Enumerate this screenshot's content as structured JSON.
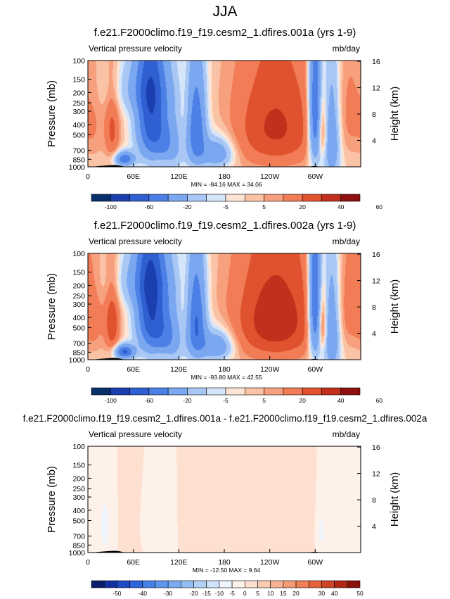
{
  "page_title": "JJA",
  "colors": {
    "panel_scale_12": [
      "#08306b",
      "#1c3fb0",
      "#2f5fd0",
      "#4d80e6",
      "#7aa7ef",
      "#a9c7f5",
      "#d6e6fa",
      "#fde4d4",
      "#fbc3a6",
      "#f7a07e",
      "#f17c55",
      "#e0522d",
      "#c0301c",
      "#901010"
    ],
    "diff_scale_20": [
      "#0a1d6b",
      "#1230a0",
      "#1d4bc6",
      "#2d66dc",
      "#4680e8",
      "#5f97ee",
      "#7aacf2",
      "#94bff5",
      "#b2d2f8",
      "#cfe3fb",
      "#eef5fd",
      "#fdf1ea",
      "#fde0cf",
      "#fbcbb2",
      "#f8b393",
      "#f49a75",
      "#ef7f58",
      "#e4613c",
      "#d04326",
      "#b02814",
      "#8a1208"
    ],
    "terrain": "#000000"
  },
  "chart_data": [
    {
      "type": "heatmap",
      "title": "f.e21.F2000climo.f19_f19.cesm2_1.dfires.001a (yrs 1-9)",
      "left_label": "Vertical pressure velocity",
      "right_label": "mb/day",
      "ylabel": "Pressure (mb)",
      "ylabel_right": "Height (km)",
      "x_ticks": [
        "0",
        "60E",
        "120E",
        "180",
        "120W",
        "60W"
      ],
      "y_ticks": [
        "100",
        "150",
        "200",
        "250",
        "300",
        "400",
        "500",
        "700",
        "850",
        "1000"
      ],
      "y_ticks_right": [
        "16",
        "12",
        "8",
        "4"
      ],
      "xlim_deg": [
        0,
        360
      ],
      "ylim_mb": [
        1000,
        100
      ],
      "minmax_text": "MIN = -84.16  MAX = 34.06",
      "colorbar_levels": [
        -100,
        -80,
        -60,
        -40,
        -20,
        -10,
        -5,
        0,
        5,
        10,
        20,
        30,
        40,
        50,
        60
      ],
      "colorbar_labels": [
        "-100",
        "-60",
        "-20",
        "-5",
        "5",
        "20",
        "40",
        "60"
      ],
      "features": [
        {
          "lon": 8,
          "p": 400,
          "amp": 8,
          "slon": 10,
          "sp": 300
        },
        {
          "lon": 32,
          "p": 450,
          "amp": 22,
          "slon": 7,
          "sp": 280
        },
        {
          "lon": 48,
          "p": 850,
          "amp": -55,
          "slon": 9,
          "sp": 90
        },
        {
          "lon": 82,
          "p": 300,
          "amp": -70,
          "slon": 13,
          "sp": 330
        },
        {
          "lon": 105,
          "p": 600,
          "amp": -35,
          "slon": 14,
          "sp": 300
        },
        {
          "lon": 70,
          "p": 180,
          "amp": -18,
          "slon": 30,
          "sp": 80
        },
        {
          "lon": 98,
          "p": 900,
          "amp": 10,
          "slon": 9,
          "sp": 80
        },
        {
          "lon": 143,
          "p": 450,
          "amp": -58,
          "slon": 9,
          "sp": 320
        },
        {
          "lon": 170,
          "p": 750,
          "amp": -38,
          "slon": 15,
          "sp": 170
        },
        {
          "lon": 128,
          "p": 350,
          "amp": 7,
          "slon": 7,
          "sp": 250
        },
        {
          "lon": 248,
          "p": 420,
          "amp": 32,
          "slon": 42,
          "sp": 380
        },
        {
          "lon": 300,
          "p": 300,
          "amp": -65,
          "slon": 6,
          "sp": 400
        },
        {
          "lon": 322,
          "p": 550,
          "amp": -42,
          "slon": 8,
          "sp": 420
        },
        {
          "lon": 310,
          "p": 480,
          "amp": 22,
          "slon": 4,
          "sp": 200
        },
        {
          "lon": 345,
          "p": 300,
          "amp": 10,
          "slon": 14,
          "sp": 280
        }
      ]
    },
    {
      "type": "heatmap",
      "title": "f.e21.F2000climo.f19_f19.cesm2_1.dfires.002a (yrs 1-9)",
      "left_label": "Vertical pressure velocity",
      "right_label": "mb/day",
      "ylabel": "Pressure (mb)",
      "ylabel_right": "Height (km)",
      "x_ticks": [
        "0",
        "60E",
        "120E",
        "180",
        "120W",
        "60W"
      ],
      "y_ticks": [
        "100",
        "150",
        "200",
        "250",
        "300",
        "400",
        "500",
        "700",
        "850",
        "1000"
      ],
      "y_ticks_right": [
        "16",
        "12",
        "8",
        "4"
      ],
      "xlim_deg": [
        0,
        360
      ],
      "ylim_mb": [
        1000,
        100
      ],
      "minmax_text": "MIN = -93.80  MAX = 42.55",
      "colorbar_levels": [
        -100,
        -80,
        -60,
        -40,
        -20,
        -10,
        -5,
        0,
        5,
        10,
        20,
        30,
        40,
        50,
        60
      ],
      "colorbar_labels": [
        "-100",
        "-60",
        "-20",
        "-5",
        "5",
        "20",
        "40",
        "60"
      ],
      "features": [
        {
          "lon": 8,
          "p": 400,
          "amp": 12,
          "slon": 10,
          "sp": 300
        },
        {
          "lon": 32,
          "p": 450,
          "amp": 28,
          "slon": 7,
          "sp": 280
        },
        {
          "lon": 48,
          "p": 850,
          "amp": -65,
          "slon": 9,
          "sp": 90
        },
        {
          "lon": 82,
          "p": 300,
          "amp": -75,
          "slon": 13,
          "sp": 330
        },
        {
          "lon": 105,
          "p": 600,
          "amp": -40,
          "slon": 14,
          "sp": 300
        },
        {
          "lon": 70,
          "p": 180,
          "amp": -20,
          "slon": 30,
          "sp": 80
        },
        {
          "lon": 98,
          "p": 900,
          "amp": 12,
          "slon": 9,
          "sp": 80
        },
        {
          "lon": 143,
          "p": 450,
          "amp": -62,
          "slon": 9,
          "sp": 320
        },
        {
          "lon": 170,
          "p": 750,
          "amp": -40,
          "slon": 15,
          "sp": 170
        },
        {
          "lon": 128,
          "p": 350,
          "amp": 9,
          "slon": 7,
          "sp": 250
        },
        {
          "lon": 248,
          "p": 420,
          "amp": 38,
          "slon": 42,
          "sp": 380
        },
        {
          "lon": 300,
          "p": 300,
          "amp": -70,
          "slon": 6,
          "sp": 400
        },
        {
          "lon": 322,
          "p": 550,
          "amp": -45,
          "slon": 8,
          "sp": 420
        },
        {
          "lon": 310,
          "p": 480,
          "amp": 26,
          "slon": 4,
          "sp": 200
        },
        {
          "lon": 345,
          "p": 300,
          "amp": 12,
          "slon": 14,
          "sp": 280
        }
      ]
    },
    {
      "type": "heatmap",
      "title": "f.e21.F2000climo.f19_f19.cesm2_1.dfires.001a - f.e21.F2000climo.f19_f19.cesm2_1.dfires.002a",
      "left_label": "Vertical pressure velocity",
      "right_label": "mb/day",
      "ylabel": "Pressure (mb)",
      "ylabel_right": "Height (km)",
      "x_ticks": [
        "0",
        "60E",
        "120E",
        "180",
        "120W",
        "60W"
      ],
      "y_ticks": [
        "100",
        "150",
        "200",
        "250",
        "300",
        "400",
        "500",
        "700",
        "850",
        "1000"
      ],
      "y_ticks_right": [
        "16",
        "12",
        "8",
        "4"
      ],
      "xlim_deg": [
        0,
        360
      ],
      "ylim_mb": [
        1000,
        100
      ],
      "minmax_text": "MIN = -12.50  MAX =   9.64",
      "colorbar_levels": [
        -60,
        -50,
        -45,
        -40,
        -35,
        -30,
        -25,
        -20,
        -15,
        -10,
        -5,
        0,
        5,
        10,
        15,
        20,
        25,
        30,
        40,
        45,
        50,
        60
      ],
      "colorbar_labels": [
        "-50",
        "-40",
        "-30",
        "-20",
        "-15",
        "-10",
        "-5",
        "0",
        "5",
        "10",
        "15",
        "20",
        "30",
        "40",
        "50"
      ],
      "features": [
        {
          "lon": 22,
          "p": 600,
          "amp": -7,
          "slon": 6,
          "sp": 300
        },
        {
          "lon": 60,
          "p": 500,
          "amp": 2.5,
          "slon": 8,
          "sp": 400
        },
        {
          "lon": 75,
          "p": 550,
          "amp": -4,
          "slon": 5,
          "sp": 200
        },
        {
          "lon": 108,
          "p": 500,
          "amp": -3,
          "slon": 6,
          "sp": 300
        },
        {
          "lon": 128,
          "p": 400,
          "amp": 3,
          "slon": 6,
          "sp": 350
        },
        {
          "lon": 162,
          "p": 450,
          "amp": 2.5,
          "slon": 6,
          "sp": 400
        },
        {
          "lon": 198,
          "p": 700,
          "amp": 2.5,
          "slon": 10,
          "sp": 200
        },
        {
          "lon": 208,
          "p": 350,
          "amp": 2.5,
          "slon": 6,
          "sp": 300
        },
        {
          "lon": 265,
          "p": 500,
          "amp": 2.5,
          "slon": 10,
          "sp": 400
        },
        {
          "lon": 296,
          "p": 550,
          "amp": 2,
          "slon": 4,
          "sp": 400
        },
        {
          "lon": 308,
          "p": 650,
          "amp": -6,
          "slon": 5,
          "sp": 250
        },
        {
          "lon": 330,
          "p": 600,
          "amp": -3.5,
          "slon": 8,
          "sp": 300
        }
      ]
    }
  ]
}
